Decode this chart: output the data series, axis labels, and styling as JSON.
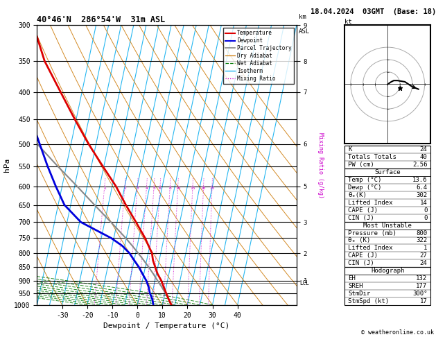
{
  "title_left": "40°46'N  286°54'W  31m ASL",
  "title_right": "18.04.2024  03GMT  (Base: 18)",
  "xlabel": "Dewpoint / Temperature (°C)",
  "ylabel_left": "hPa",
  "pressure_levels": [
    300,
    350,
    400,
    450,
    500,
    550,
    600,
    650,
    700,
    750,
    800,
    850,
    900,
    950,
    1000
  ],
  "p_min": 300,
  "p_max": 1000,
  "T_min": -40,
  "T_max": 40,
  "SKEW": 45.0,
  "isotherm_temps": [
    -40,
    -35,
    -30,
    -25,
    -20,
    -15,
    -10,
    -5,
    0,
    5,
    10,
    15,
    20,
    25,
    30,
    35,
    40
  ],
  "dry_adiabat_thetas": [
    -40,
    -30,
    -20,
    -10,
    0,
    10,
    20,
    30,
    40,
    50,
    60,
    70,
    80,
    90,
    100,
    110,
    120
  ],
  "moist_adiabat_T0s": [
    -20,
    -15,
    -10,
    -5,
    0,
    5,
    10,
    15,
    20,
    25,
    30
  ],
  "mixing_ratio_ws": [
    1,
    2,
    3,
    4,
    5,
    6,
    8,
    10,
    15,
    20,
    25
  ],
  "temp_profile_p": [
    1000,
    975,
    950,
    925,
    900,
    875,
    850,
    825,
    800,
    775,
    750,
    700,
    650,
    600,
    550,
    500,
    450,
    400,
    350,
    300
  ],
  "temp_profile_T": [
    13.6,
    12.0,
    10.5,
    9.0,
    7.5,
    5.5,
    4.0,
    2.5,
    1.5,
    -0.5,
    -2.5,
    -7.5,
    -13.0,
    -18.5,
    -25.5,
    -33.0,
    -40.5,
    -48.5,
    -57.5,
    -65.0
  ],
  "dewp_profile_p": [
    1000,
    975,
    950,
    925,
    900,
    875,
    850,
    825,
    800,
    775,
    750,
    700,
    650,
    600,
    550,
    500,
    450,
    400,
    350,
    300
  ],
  "dewp_profile_T": [
    6.4,
    5.5,
    4.0,
    3.0,
    1.5,
    -0.5,
    -2.5,
    -5.0,
    -7.5,
    -11.0,
    -16.0,
    -29.5,
    -37.5,
    -42.5,
    -47.5,
    -52.5,
    -58.0,
    -63.0,
    -68.0,
    -73.0
  ],
  "parcel_profile_p": [
    1000,
    975,
    950,
    925,
    900,
    875,
    850,
    825,
    800,
    775,
    750,
    700,
    650,
    600,
    550,
    500,
    450,
    400,
    350,
    300
  ],
  "parcel_profile_T": [
    13.6,
    12.0,
    10.2,
    8.2,
    6.0,
    3.8,
    1.4,
    -1.2,
    -4.0,
    -7.0,
    -10.2,
    -17.5,
    -25.5,
    -34.0,
    -43.5,
    -53.5,
    -64.0,
    -75.5,
    -88.0,
    -101.0
  ],
  "km_ticks_p": [
    300,
    350,
    400,
    500,
    600,
    700,
    800,
    900
  ],
  "km_ticks_val": [
    "9",
    "8",
    "7",
    "6",
    "5",
    "3",
    "2",
    "1"
  ],
  "lcl_pressure": 910,
  "color_temp": "#dd0000",
  "color_dewp": "#0000dd",
  "color_parcel": "#888888",
  "color_dry_adiabat": "#cc7700",
  "color_wet_adiabat": "#007700",
  "color_isotherm": "#00aaee",
  "color_mixing_ratio": "#cc00cc",
  "stats_K": 24,
  "stats_TT": 40,
  "stats_PW": "2.56",
  "stats_sfc_temp": "13.6",
  "stats_sfc_dewp": "6.4",
  "stats_sfc_theta_e": 302,
  "stats_sfc_LI": 14,
  "stats_sfc_CAPE": 0,
  "stats_sfc_CIN": 0,
  "stats_mu_P": 800,
  "stats_mu_theta_e": 322,
  "stats_mu_LI": 1,
  "stats_mu_CAPE": 27,
  "stats_mu_CIN": 24,
  "stats_EH": 132,
  "stats_SREH": 177,
  "stats_StmDir": "300°",
  "stats_StmSpd": 17,
  "copyright": "© weatheronline.co.uk",
  "hodo_u": [
    0,
    3,
    5,
    8,
    14,
    20,
    25
  ],
  "hodo_v": [
    0,
    2,
    3,
    3,
    2,
    -2,
    -4
  ],
  "hodo_sm_u": 10,
  "hodo_sm_v": -3
}
